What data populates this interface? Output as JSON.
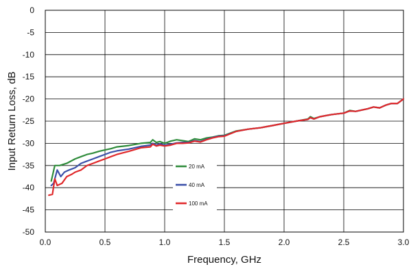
{
  "chart_data": {
    "type": "line",
    "title": "",
    "xlabel": "Frequency, GHz",
    "ylabel": "Input Return Loss, dB",
    "xlim": [
      0,
      3.0
    ],
    "ylim": [
      -50,
      0
    ],
    "x_ticks": [
      "0.0",
      "0.5",
      "1.0",
      "1.5",
      "2.0",
      "2.5",
      "3.0"
    ],
    "y_ticks": [
      "0",
      "-5",
      "-10",
      "-15",
      "-20",
      "-25",
      "-30",
      "-35",
      "-40",
      "-45",
      "-50"
    ],
    "grid": true,
    "legend_position": "center-left",
    "series": [
      {
        "name": "20 mA",
        "color": "#2e8b3a",
        "x": [
          0.05,
          0.08,
          0.12,
          0.18,
          0.25,
          0.3,
          0.35,
          0.4,
          0.45,
          0.5,
          0.55,
          0.6,
          0.7,
          0.8,
          0.88,
          0.9,
          0.93,
          0.96,
          1.0,
          1.05,
          1.1,
          1.15,
          1.2,
          1.25,
          1.3,
          1.35,
          1.4,
          1.45,
          1.5,
          1.6,
          1.7,
          1.8,
          1.9,
          2.0,
          2.1,
          2.2,
          2.22,
          2.25,
          2.3,
          2.4,
          2.5,
          2.55,
          2.6,
          2.7,
          2.75,
          2.8,
          2.85,
          2.9,
          2.95,
          3.0
        ],
        "values": [
          -38.5,
          -35.0,
          -35.0,
          -34.5,
          -33.5,
          -33.0,
          -32.5,
          -32.2,
          -31.8,
          -31.5,
          -31.2,
          -30.8,
          -30.5,
          -30.0,
          -29.8,
          -29.2,
          -29.8,
          -29.6,
          -30.0,
          -29.5,
          -29.2,
          -29.4,
          -29.6,
          -29.0,
          -29.2,
          -28.8,
          -28.6,
          -28.3,
          -28.2,
          -27.2,
          -26.8,
          -26.5,
          -26.0,
          -25.5,
          -25.0,
          -24.5,
          -24.0,
          -24.4,
          -24.0,
          -23.5,
          -23.2,
          -22.6,
          -22.8,
          -22.2,
          -21.8,
          -22.0,
          -21.4,
          -21.0,
          -21.0,
          -20.0
        ]
      },
      {
        "name": "40 mA",
        "color": "#3a4fa8",
        "x": [
          0.05,
          0.07,
          0.1,
          0.13,
          0.16,
          0.2,
          0.25,
          0.3,
          0.35,
          0.4,
          0.45,
          0.5,
          0.55,
          0.6,
          0.7,
          0.8,
          0.88,
          0.9,
          0.93,
          0.96,
          1.0,
          1.05,
          1.1,
          1.15,
          1.2,
          1.25,
          1.3,
          1.35,
          1.4,
          1.45,
          1.5,
          1.6,
          1.7,
          1.8,
          1.9,
          2.0,
          2.1,
          2.2,
          2.22,
          2.25,
          2.3,
          2.4,
          2.5,
          2.55,
          2.6,
          2.7,
          2.75,
          2.8,
          2.85,
          2.9,
          2.95,
          3.0
        ],
        "values": [
          -39.5,
          -39.0,
          -36.0,
          -37.5,
          -36.5,
          -36.0,
          -35.5,
          -34.5,
          -34.0,
          -33.5,
          -33.0,
          -32.5,
          -32.0,
          -31.7,
          -31.3,
          -30.7,
          -30.4,
          -30.0,
          -30.4,
          -30.1,
          -30.4,
          -30.2,
          -29.9,
          -29.8,
          -29.8,
          -29.4,
          -29.6,
          -29.1,
          -28.7,
          -28.4,
          -28.3,
          -27.3,
          -26.8,
          -26.5,
          -26.0,
          -25.5,
          -25.0,
          -24.6,
          -24.2,
          -24.5,
          -24.0,
          -23.5,
          -23.2,
          -22.7,
          -22.8,
          -22.2,
          -21.8,
          -22.0,
          -21.4,
          -21.0,
          -21.0,
          -20.0
        ]
      },
      {
        "name": "100 mA",
        "color": "#e0282a",
        "x": [
          0.03,
          0.06,
          0.08,
          0.1,
          0.14,
          0.18,
          0.22,
          0.25,
          0.3,
          0.35,
          0.4,
          0.45,
          0.5,
          0.55,
          0.6,
          0.7,
          0.8,
          0.88,
          0.9,
          0.93,
          0.96,
          1.0,
          1.05,
          1.1,
          1.15,
          1.2,
          1.25,
          1.3,
          1.35,
          1.4,
          1.45,
          1.5,
          1.6,
          1.7,
          1.8,
          1.9,
          2.0,
          2.1,
          2.2,
          2.22,
          2.25,
          2.3,
          2.4,
          2.5,
          2.55,
          2.6,
          2.7,
          2.75,
          2.8,
          2.85,
          2.9,
          2.95,
          3.0
        ],
        "values": [
          -41.7,
          -41.5,
          -38.0,
          -39.5,
          -39.0,
          -37.5,
          -37.0,
          -36.5,
          -36.0,
          -35.0,
          -34.5,
          -34.0,
          -33.5,
          -33.0,
          -32.5,
          -31.8,
          -31.0,
          -30.8,
          -30.2,
          -30.6,
          -30.4,
          -30.6,
          -30.4,
          -30.0,
          -30.0,
          -29.9,
          -29.5,
          -29.7,
          -29.2,
          -28.8,
          -28.5,
          -28.4,
          -27.3,
          -26.8,
          -26.5,
          -26.0,
          -25.5,
          -25.0,
          -24.6,
          -24.2,
          -24.5,
          -24.0,
          -23.5,
          -23.2,
          -22.7,
          -22.8,
          -22.2,
          -21.8,
          -22.0,
          -21.4,
          -21.0,
          -21.0,
          -20.0
        ]
      }
    ]
  }
}
